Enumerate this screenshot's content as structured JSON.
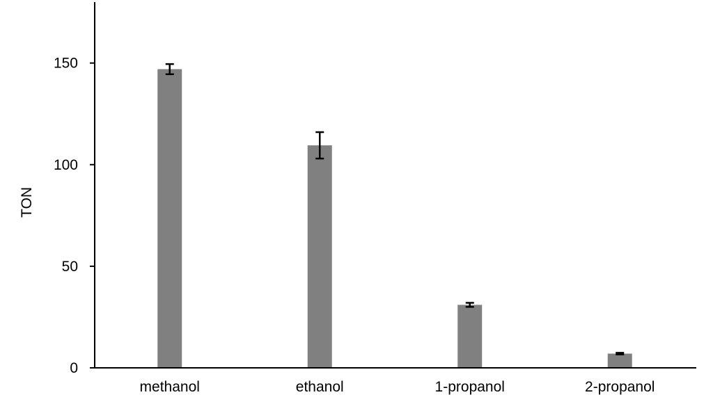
{
  "chart_data": {
    "type": "bar",
    "title": "",
    "xlabel": "",
    "ylabel": "TON",
    "ylim": [
      0,
      180
    ],
    "yticks": [
      0,
      50,
      100,
      150
    ],
    "categories": [
      "methanol",
      "ethanol",
      "1-propanol",
      "2-propanol"
    ],
    "values": [
      147,
      109.5,
      31,
      7
    ],
    "errors": [
      2.5,
      6.5,
      1,
      0.4
    ],
    "grid": false,
    "bar_color": "#808080",
    "error_color": "#000000"
  }
}
